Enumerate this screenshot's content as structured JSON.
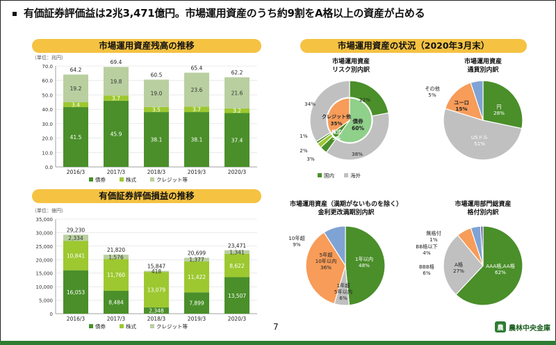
{
  "headline": "有価証券評価益は2兆3,471億円。市場運用資産のうち約9割をA格以上の資産が占める",
  "page_number": "7",
  "logo_text": "農林中央金庫",
  "colors": {
    "banner": "#f5c242",
    "dark_green": "#4a8f2a",
    "light_green": "#9dc830",
    "grey_green": "#b9cfa0",
    "grey": "#c0c0c0",
    "orange": "#f79c59",
    "blue": "#7fa3d4"
  },
  "chart_data": [
    {
      "type": "bar",
      "title": "市場運用資産残高の推移",
      "unit_label": "（単位：兆円）",
      "categories": [
        "2016/3",
        "2017/3",
        "2018/3",
        "2019/3",
        "2020/3"
      ],
      "series": [
        {
          "name": "債券",
          "values": [
            41.5,
            45.9,
            38.1,
            38.1,
            37.4
          ]
        },
        {
          "name": "株式",
          "values": [
            3.4,
            3.7,
            3.5,
            3.7,
            3.2
          ]
        },
        {
          "name": "クレジット等",
          "values": [
            19.2,
            19.8,
            19.0,
            23.6,
            21.6
          ]
        }
      ],
      "totals": [
        "64.2",
        "69.4",
        "60.5",
        "65.4",
        "62.2"
      ],
      "ylim": [
        0,
        70
      ],
      "yticks": [
        "0.0",
        "10.0",
        "20.0",
        "30.0",
        "40.0",
        "50.0",
        "60.0",
        "70.0"
      ]
    },
    {
      "type": "bar",
      "title": "有価証券評価損益の推移",
      "unit_label": "（単位：億円）",
      "categories": [
        "2016/3",
        "2017/3",
        "2018/3",
        "2019/3",
        "2020/3"
      ],
      "series": [
        {
          "name": "債券",
          "values": [
            16053,
            8484,
            2348,
            7899,
            13507
          ]
        },
        {
          "name": "株式",
          "values": [
            10841,
            11760,
            13079,
            11422,
            8622
          ]
        },
        {
          "name": "クレジット等",
          "values": [
            2334,
            1576,
            418,
            1377,
            1341
          ]
        }
      ],
      "value_labels": [
        [
          "16,053",
          "8,484",
          "2,348",
          "7,899",
          "13,507"
        ],
        [
          "10,841",
          "11,760",
          "13,079",
          "11,422",
          "8,622"
        ],
        [
          "2,334",
          "1,576",
          "418",
          "1,377",
          "1,341"
        ]
      ],
      "totals": [
        "29,230",
        "21,820",
        "15,847",
        "20,699",
        "23,471"
      ],
      "ylim": [
        0,
        35000
      ],
      "yticks": [
        "0",
        "5,000",
        "10,000",
        "15,000",
        "20,000",
        "25,000",
        "30,000",
        "35,000"
      ]
    },
    {
      "type": "pie",
      "title": "市場運用資産の状況（2020年3月末）",
      "subtitle": [
        "市場運用資産",
        "リスク別内訳"
      ],
      "outer": [
        {
          "label": "22%",
          "value": 22
        },
        {
          "label": "38%",
          "value": 38
        },
        {
          "label": "3%",
          "value": 3
        },
        {
          "label": "2%",
          "value": 2
        },
        {
          "label": "1%",
          "value": 1
        },
        {
          "label": "34%",
          "value": 34
        }
      ],
      "inner": [
        {
          "label": "債券",
          "pct": "60%",
          "value": 60
        },
        {
          "label": "株式",
          "pct": "5%",
          "value": 5
        },
        {
          "label": "クレジット他",
          "pct": "35%",
          "value": 35
        }
      ],
      "legend": [
        "国内",
        "海外"
      ]
    },
    {
      "type": "pie",
      "subtitle": [
        "市場運用資産",
        "通貨別内訳"
      ],
      "slices": [
        {
          "label": "円",
          "pct": "28%",
          "value": 28
        },
        {
          "label": "USドル",
          "pct": "51%",
          "value": 51
        },
        {
          "label": "ユーロ",
          "pct": "15%",
          "value": 15
        },
        {
          "label": "その他",
          "pct": "5%",
          "value": 5
        }
      ]
    },
    {
      "type": "pie",
      "subtitle": [
        "市場運用資産（満期がないものを除く）",
        "金利更改満期別内訳"
      ],
      "slices": [
        {
          "label": "1年以内",
          "pct": "48%",
          "value": 48
        },
        {
          "label": "1年超 5年以内",
          "pct": "6%",
          "value": 6
        },
        {
          "label": "5年超 10年以内",
          "pct": "36%",
          "value": 36
        },
        {
          "label": "10年超",
          "pct": "9%",
          "value": 9
        }
      ]
    },
    {
      "type": "pie",
      "subtitle": [
        "市場運用部門総資産",
        "格付別内訳"
      ],
      "slices": [
        {
          "label": "AAA格,AA格",
          "pct": "62%",
          "value": 62
        },
        {
          "label": "A格",
          "pct": "27%",
          "value": 27
        },
        {
          "label": "BBB格",
          "pct": "6%",
          "value": 6
        },
        {
          "label": "BB格以下",
          "pct": "4%",
          "value": 4
        },
        {
          "label": "無格付",
          "pct": "1%",
          "value": 1
        }
      ]
    }
  ]
}
